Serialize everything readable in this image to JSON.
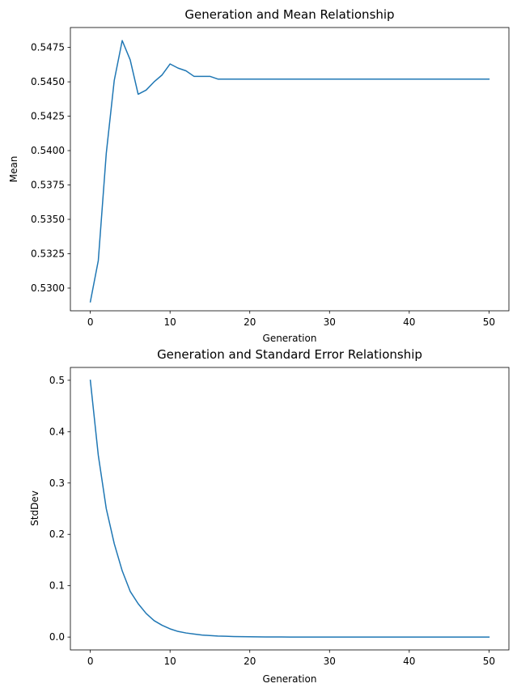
{
  "figure": {
    "background": "#ffffff"
  },
  "chart_data": [
    {
      "type": "line",
      "title": "Generation and Mean Relationship",
      "xlabel": "Generation",
      "ylabel": "Mean",
      "xlim": [
        -2.5,
        52.5
      ],
      "ylim": [
        0.52835,
        0.54895
      ],
      "xticks": [
        0,
        10,
        20,
        30,
        40,
        50
      ],
      "yticks": [
        0.53,
        0.5325,
        0.535,
        0.5375,
        0.54,
        0.5425,
        0.545,
        0.5475
      ],
      "ytick_decimals": 4,
      "grid": false,
      "series": [
        {
          "color": "#1f77b4",
          "x": [
            0,
            1,
            2,
            3,
            4,
            5,
            6,
            7,
            8,
            9,
            10,
            11,
            12,
            13,
            14,
            15,
            16,
            17,
            18,
            19,
            20,
            21,
            22,
            23,
            24,
            25,
            26,
            27,
            28,
            29,
            30,
            31,
            32,
            33,
            34,
            35,
            36,
            37,
            38,
            39,
            40,
            41,
            42,
            43,
            44,
            45,
            46,
            47,
            48,
            49,
            50
          ],
          "y": [
            0.529,
            0.532,
            0.5398,
            0.5451,
            0.548,
            0.5466,
            0.5441,
            0.5444,
            0.545,
            0.5455,
            0.5463,
            0.546,
            0.5458,
            0.5454,
            0.5454,
            0.5454,
            0.5452,
            0.5452,
            0.5452,
            0.5452,
            0.5452,
            0.5452,
            0.5452,
            0.5452,
            0.5452,
            0.5452,
            0.5452,
            0.5452,
            0.5452,
            0.5452,
            0.5452,
            0.5452,
            0.5452,
            0.5452,
            0.5452,
            0.5452,
            0.5452,
            0.5452,
            0.5452,
            0.5452,
            0.5452,
            0.5452,
            0.5452,
            0.5452,
            0.5452,
            0.5452,
            0.5452,
            0.5452,
            0.5452,
            0.5452,
            0.5452
          ]
        }
      ]
    },
    {
      "type": "line",
      "title": "Generation and Standard Error Relationship",
      "xlabel": "Generation",
      "ylabel": "StdDev",
      "xlim": [
        -2.5,
        52.5
      ],
      "ylim": [
        -0.025,
        0.525
      ],
      "xticks": [
        0,
        10,
        20,
        30,
        40,
        50
      ],
      "yticks": [
        0.0,
        0.1,
        0.2,
        0.3,
        0.4,
        0.5
      ],
      "ytick_decimals": 1,
      "grid": false,
      "series": [
        {
          "color": "#1f77b4",
          "x": [
            0,
            1,
            2,
            3,
            4,
            5,
            6,
            7,
            8,
            9,
            10,
            11,
            12,
            13,
            14,
            15,
            16,
            17,
            18,
            19,
            20,
            21,
            22,
            23,
            24,
            25,
            26,
            27,
            28,
            29,
            30,
            31,
            32,
            33,
            34,
            35,
            36,
            37,
            38,
            39,
            40,
            41,
            42,
            43,
            44,
            45,
            46,
            47,
            48,
            49,
            50
          ],
          "y": [
            0.5,
            0.354,
            0.25,
            0.182,
            0.129,
            0.089,
            0.065,
            0.046,
            0.032,
            0.023,
            0.016,
            0.011,
            0.008,
            0.006,
            0.004,
            0.003,
            0.002,
            0.0015,
            0.001,
            0.0008,
            0.0006,
            0.0004,
            0.0003,
            0.0002,
            0.0002,
            0.0001,
            0.0001,
            0.0001,
            0.0001,
            0,
            0,
            0,
            0,
            0,
            0,
            0,
            0,
            0,
            0,
            0,
            0,
            0,
            0,
            0,
            0,
            0,
            0,
            0,
            0,
            0,
            0
          ]
        }
      ]
    }
  ]
}
